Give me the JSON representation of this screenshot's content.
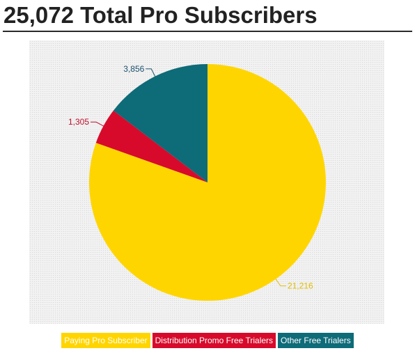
{
  "title": "25,072 Total Pro Subscribers",
  "chart_data": {
    "type": "pie",
    "title": "25,072 Total Pro Subscribers",
    "start_angle": "12 o'clock",
    "direction": "clockwise",
    "slices": [
      {
        "label": "Paying Pro Subscriber",
        "value": 21216,
        "value_label": "21,216",
        "color": "#FFD500",
        "label_color": "#E0BC00"
      },
      {
        "label": "Distribution Promo Free Trialers",
        "value": 1305,
        "value_label": "1,305",
        "color": "#D80A2B",
        "label_color": "#C0102C"
      },
      {
        "label": "Other Free Trialers",
        "value": 3856,
        "value_label": "3,856",
        "color": "#0E6B78",
        "label_color": "#1B4F6B"
      }
    ],
    "legend": {
      "position": "bottom-center",
      "items": [
        {
          "label": "Paying Pro Subscriber",
          "color": "#FFD500"
        },
        {
          "label": "Distribution Promo Free Trialers",
          "color": "#D80A2B"
        },
        {
          "label": "Other Free Trialers",
          "color": "#0E6B78"
        }
      ]
    }
  }
}
